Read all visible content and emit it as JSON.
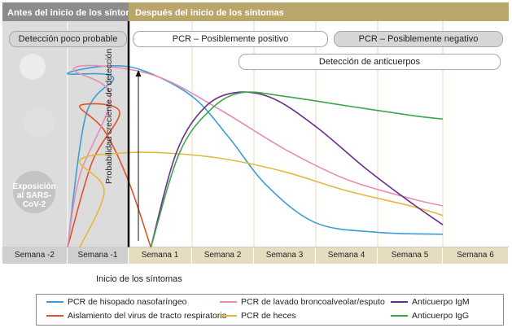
{
  "header": {
    "before": "Antes del inicio de los síntomas",
    "after": "Después del inicio de los síntomas"
  },
  "pills": {
    "unlikely": "Detección poco probable",
    "pcr_pos": "PCR – Posiblemente positivo",
    "pcr_neg": "PCR – Posiblemente negativo",
    "antibody": "Detección de anticuerpos"
  },
  "virus_label": "Exposición al SARS-CoV-2",
  "y_annotation": "Probabilidad creciente de detección",
  "onset_label": "Inicio de los síntomas",
  "colors": {
    "header_before": "#8c8c8c",
    "header_after": "#b8a66a",
    "pcr_nasopharyngeal": "#3a9fd5",
    "virus_isolation": "#e0522a",
    "pcr_bal": "#e88cb4",
    "pcr_stool": "#e3b93c",
    "igm": "#6b2d8c",
    "igg": "#3aa84a"
  },
  "chart_data": {
    "type": "line",
    "x_unit": "weeks relative to symptom onset",
    "categories": [
      "Semana -2",
      "Semana -1",
      "Semana 1",
      "Semana 2",
      "Semana 3",
      "Semana 4",
      "Semana 5",
      "Semana 6"
    ],
    "ylim": [
      0,
      1
    ],
    "grid": true,
    "legend_position": "bottom",
    "series": [
      {
        "name": "PCR de hisopado nasofaríngeo",
        "color_key": "pcr_nasopharyngeal",
        "points": [
          [
            -1.0,
            0.0
          ],
          [
            -0.7,
            0.7
          ],
          [
            -0.25,
            0.9
          ],
          [
            0.0,
            0.92
          ],
          [
            0.6,
            0.96
          ],
          [
            1.2,
            0.94
          ],
          [
            2.0,
            0.8
          ],
          [
            2.6,
            0.58
          ],
          [
            3.2,
            0.33
          ],
          [
            4.0,
            0.13
          ],
          [
            5.0,
            0.08
          ],
          [
            6.0,
            0.07
          ]
        ]
      },
      {
        "name": "Aislamiento del virus de tracto respiratorio",
        "color_key": "virus_isolation",
        "points": [
          [
            -1.0,
            0.0
          ],
          [
            -0.6,
            0.45
          ],
          [
            -0.15,
            0.72
          ],
          [
            0.2,
            0.75
          ],
          [
            0.6,
            0.62
          ],
          [
            1.0,
            0.35
          ],
          [
            1.35,
            0.0
          ]
        ]
      },
      {
        "name": "PCR de lavado broncoalveolar/esputo",
        "color_key": "pcr_bal",
        "points": [
          [
            -1.0,
            0.0
          ],
          [
            -0.8,
            0.38
          ],
          [
            -0.3,
            0.8
          ],
          [
            0.1,
            0.94
          ],
          [
            0.6,
            0.96
          ],
          [
            1.5,
            0.9
          ],
          [
            2.5,
            0.72
          ],
          [
            3.5,
            0.52
          ],
          [
            4.5,
            0.36
          ],
          [
            5.5,
            0.26
          ],
          [
            6.0,
            0.22
          ]
        ]
      },
      {
        "name": "PCR de heces",
        "color_key": "pcr_stool",
        "points": [
          [
            -0.8,
            0.0
          ],
          [
            -0.4,
            0.3
          ],
          [
            0.2,
            0.46
          ],
          [
            0.9,
            0.5
          ],
          [
            1.6,
            0.5
          ],
          [
            2.5,
            0.47
          ],
          [
            3.5,
            0.4
          ],
          [
            4.5,
            0.3
          ],
          [
            5.5,
            0.22
          ],
          [
            6.0,
            0.17
          ]
        ]
      },
      {
        "name": "Anticuerpo IgM",
        "color_key": "igm",
        "points": [
          [
            1.35,
            0.0
          ],
          [
            1.75,
            0.5
          ],
          [
            2.2,
            0.74
          ],
          [
            2.7,
            0.82
          ],
          [
            3.3,
            0.79
          ],
          [
            4.0,
            0.64
          ],
          [
            4.8,
            0.42
          ],
          [
            5.5,
            0.24
          ],
          [
            6.0,
            0.12
          ]
        ]
      },
      {
        "name": "Anticuerpo IgG",
        "color_key": "igg",
        "points": [
          [
            1.35,
            0.0
          ],
          [
            1.8,
            0.5
          ],
          [
            2.3,
            0.73
          ],
          [
            2.8,
            0.82
          ],
          [
            3.5,
            0.8
          ],
          [
            4.5,
            0.75
          ],
          [
            5.5,
            0.7
          ],
          [
            6.0,
            0.68
          ]
        ]
      }
    ]
  },
  "legend": [
    {
      "label": "PCR de hisopado nasofaríngeo",
      "color_key": "pcr_nasopharyngeal"
    },
    {
      "label": "PCR de lavado broncoalveolar/esputo",
      "color_key": "pcr_bal"
    },
    {
      "label": "Anticuerpo IgM",
      "color_key": "igm"
    },
    {
      "label": "Aislamiento del virus de tracto respiratorio",
      "color_key": "virus_isolation"
    },
    {
      "label": "PCR de heces",
      "color_key": "pcr_stool"
    },
    {
      "label": "Anticuerpo IgG",
      "color_key": "igg"
    }
  ]
}
